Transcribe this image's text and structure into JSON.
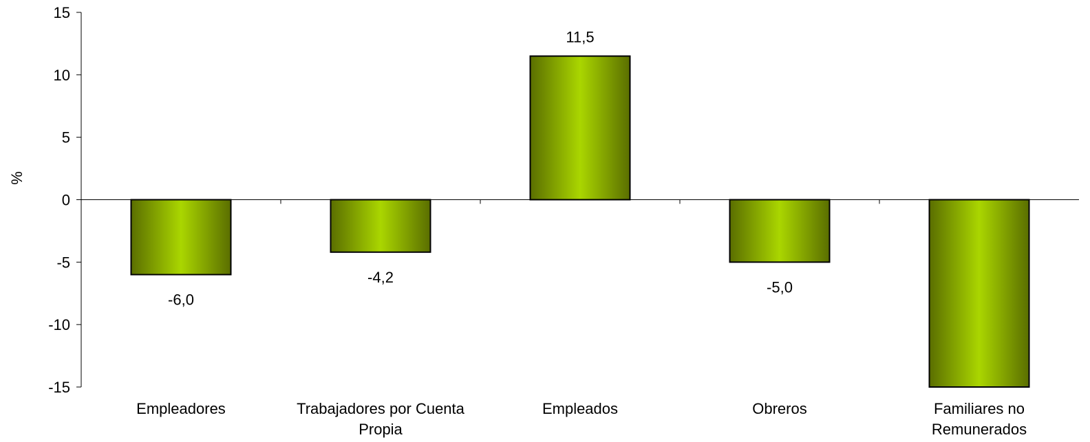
{
  "chart_data": {
    "type": "bar",
    "title": "",
    "xlabel": "",
    "ylabel": "%",
    "ylim": [
      -15,
      15
    ],
    "yticks": [
      {
        "value": 15,
        "label": "15"
      },
      {
        "value": 10,
        "label": "10"
      },
      {
        "value": 5,
        "label": "5"
      },
      {
        "value": 0,
        "label": "0"
      },
      {
        "value": -5,
        "label": "-5"
      },
      {
        "value": -10,
        "label": "-10"
      },
      {
        "value": -15,
        "label": "-15"
      }
    ],
    "categories": [
      [
        "Empleadores"
      ],
      [
        "Trabajadores por Cuenta",
        "Propia"
      ],
      [
        "Empleados"
      ],
      [
        "Obreros"
      ],
      [
        "Familiares no",
        "Remunerados"
      ]
    ],
    "values": [
      -6.0,
      -4.2,
      11.5,
      -5.0,
      -17.3
    ],
    "data_labels": [
      "-6,0",
      "-4,2",
      "11,5",
      "-5,0",
      null
    ],
    "grid": false,
    "legend": "none",
    "bar_color_dark": "#5a6e00",
    "bar_color_light": "#aad600",
    "bar_stroke": "#000000"
  }
}
